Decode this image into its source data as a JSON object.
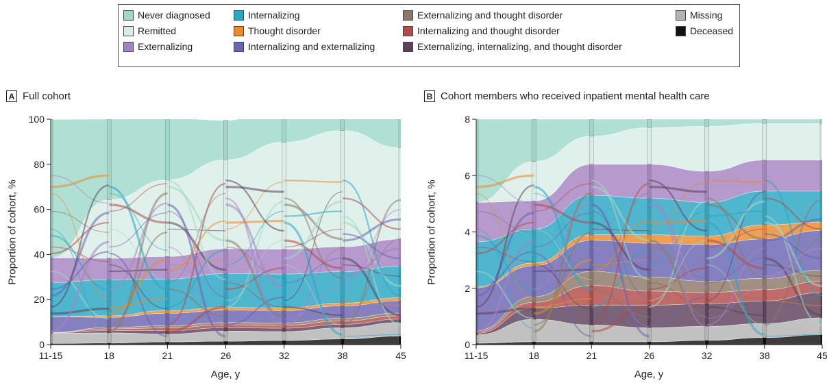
{
  "legend": [
    {
      "label": "Never diagnosed",
      "color": "#9fd8c9",
      "col": 0,
      "row": 0
    },
    {
      "label": "Remitted",
      "color": "#d9ede6",
      "col": 0,
      "row": 1
    },
    {
      "label": "Externalizing",
      "color": "#a682c2",
      "col": 0,
      "row": 2
    },
    {
      "label": "Internalizing",
      "color": "#2aa5c4",
      "col": 1,
      "row": 0
    },
    {
      "label": "Thought disorder",
      "color": "#ea8a2c",
      "col": 1,
      "row": 1
    },
    {
      "label": "Internalizing and externalizing",
      "color": "#6a64b1",
      "col": 1,
      "row": 2
    },
    {
      "label": "Externalizing and thought disorder",
      "color": "#8c7865",
      "col": 2,
      "row": 0
    },
    {
      "label": "Internalizing and thought disorder",
      "color": "#b14a48",
      "col": 2,
      "row": 1
    },
    {
      "label": "Externalizing, internalizing, and thought disorder",
      "color": "#5d3f5a",
      "col": 2,
      "row": 2
    },
    {
      "label": "Missing",
      "color": "#b3b3b3",
      "col": 3,
      "row": 0
    },
    {
      "label": "Deceased",
      "color": "#111111",
      "col": 3,
      "row": 1
    }
  ],
  "chart_data": [
    {
      "type": "area",
      "panel_letter": "A",
      "title": "Full cohort",
      "xlabel": "Age, y",
      "ylabel": "Proportion of cohort, %",
      "categories": [
        "11-15",
        "18",
        "21",
        "26",
        "32",
        "38",
        "45"
      ],
      "ylim": [
        0,
        100
      ],
      "yticks": [
        0,
        20,
        40,
        60,
        80,
        100
      ],
      "series": [
        {
          "name": "Deceased",
          "color": "#111111",
          "values": [
            0.5,
            0.7,
            1.2,
            1.5,
            1.8,
            2.5,
            3.8
          ]
        },
        {
          "name": "Missing",
          "color": "#b3b3b3",
          "values": [
            4.5,
            4.5,
            3.5,
            4.5,
            4,
            5,
            6
          ]
        },
        {
          "name": "Externalizing, internalizing, and thought disorder",
          "color": "#5d3f5a",
          "values": [
            0.2,
            1,
            1.5,
            1.5,
            1.5,
            1.5,
            1.5
          ]
        },
        {
          "name": "Internalizing and thought disorder",
          "color": "#b14a48",
          "values": [
            0.1,
            0.8,
            1.2,
            1.3,
            1.3,
            1.5,
            1.5
          ]
        },
        {
          "name": "Externalizing and thought disorder",
          "color": "#8c7865",
          "values": [
            0.1,
            0.6,
            1,
            1,
            1,
            1.2,
            1.2
          ]
        },
        {
          "name": "Internalizing and externalizing",
          "color": "#6a64b1",
          "values": [
            7,
            4.5,
            5.5,
            5.5,
            5.5,
            5.5,
            5.5
          ]
        },
        {
          "name": "Thought disorder",
          "color": "#ea8a2c",
          "values": [
            0.1,
            0.7,
            1.2,
            1.2,
            1.2,
            1.2,
            1.3
          ]
        },
        {
          "name": "Internalizing",
          "color": "#2aa5c4",
          "values": [
            15,
            16,
            14,
            15,
            15,
            14,
            14
          ]
        },
        {
          "name": "Externalizing",
          "color": "#a682c2",
          "values": [
            11,
            9.5,
            10,
            11,
            11,
            11,
            12
          ]
        },
        {
          "name": "Remitted",
          "color": "#d9ede6",
          "values": [
            0,
            26,
            34,
            39.5,
            47.5,
            51.6,
            40.5
          ]
        },
        {
          "name": "Never diagnosed",
          "color": "#9fd8c9",
          "values": [
            61.4,
            35.7,
            27.4,
            17.5,
            16.2,
            13.8,
            12.7
          ]
        }
      ]
    },
    {
      "type": "area",
      "panel_letter": "B",
      "title": "Cohort members who received inpatient mental health care",
      "xlabel": "Age, y",
      "ylabel": "Proportion of cohort, %",
      "categories": [
        "11-15",
        "18",
        "21",
        "26",
        "32",
        "38",
        "45"
      ],
      "ylim": [
        0,
        8
      ],
      "yticks": [
        0,
        2,
        4,
        6,
        8
      ],
      "series": [
        {
          "name": "Deceased",
          "color": "#111111",
          "values": [
            0.05,
            0.1,
            0.1,
            0.1,
            0.15,
            0.25,
            0.35
          ]
        },
        {
          "name": "Missing",
          "color": "#b3b3b3",
          "values": [
            0.3,
            0.8,
            0.6,
            0.5,
            0.5,
            0.5,
            0.6
          ]
        },
        {
          "name": "Externalizing, internalizing, and thought disorder",
          "color": "#5d3f5a",
          "values": [
            0.05,
            0.4,
            0.7,
            0.8,
            0.8,
            0.8,
            0.9
          ]
        },
        {
          "name": "Internalizing and thought disorder",
          "color": "#b14a48",
          "values": [
            0.05,
            0.2,
            0.7,
            0.5,
            0.4,
            0.4,
            0.4
          ]
        },
        {
          "name": "Externalizing and thought disorder",
          "color": "#8c7865",
          "values": [
            0.05,
            0.2,
            0.5,
            0.5,
            0.4,
            0.4,
            0.4
          ]
        },
        {
          "name": "Internalizing and externalizing",
          "color": "#6a64b1",
          "values": [
            1.5,
            1.1,
            1.1,
            1.2,
            1.3,
            1.4,
            1.4
          ]
        },
        {
          "name": "Thought disorder",
          "color": "#ea8a2c",
          "values": [
            0.05,
            0.1,
            0.2,
            0.3,
            0.3,
            0.5,
            0.3
          ]
        },
        {
          "name": "Internalizing",
          "color": "#2aa5c4",
          "values": [
            1.6,
            1.2,
            1.4,
            1.3,
            1.2,
            1.2,
            1.1
          ]
        },
        {
          "name": "Externalizing",
          "color": "#a682c2",
          "values": [
            1.4,
            1.0,
            1.1,
            1.2,
            1.1,
            1.1,
            1.1
          ]
        },
        {
          "name": "Remitted",
          "color": "#d9ede6",
          "values": [
            0,
            1.4,
            1.0,
            1.3,
            1.6,
            1.3,
            1.3
          ]
        },
        {
          "name": "Never diagnosed",
          "color": "#9fd8c9",
          "values": [
            2.95,
            1.5,
            0.6,
            0.3,
            0.25,
            0.15,
            0.15
          ]
        }
      ]
    }
  ]
}
